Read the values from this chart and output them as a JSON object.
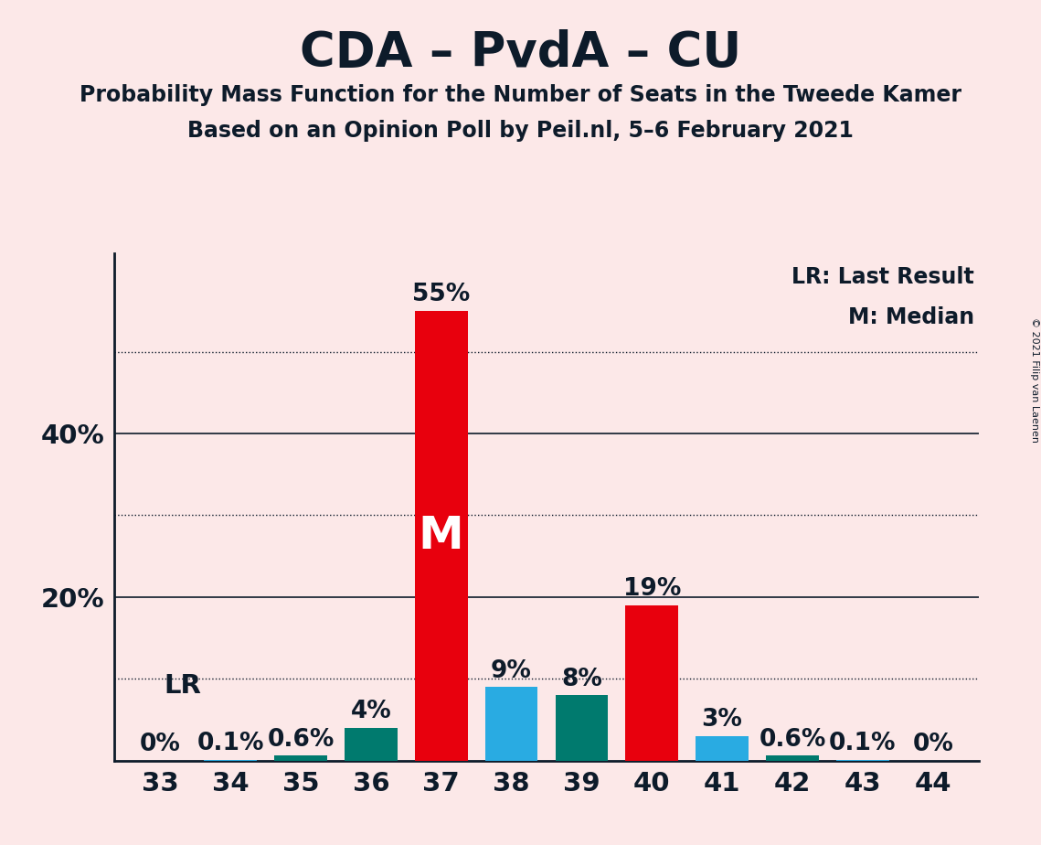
{
  "title": "CDA – PvdA – CU",
  "subtitle1": "Probability Mass Function for the Number of Seats in the Tweede Kamer",
  "subtitle2": "Based on an Opinion Poll by Peil.nl, 5–6 February 2021",
  "copyright": "© 2021 Filip van Laenen",
  "legend_lr": "LR: Last Result",
  "legend_m": "M: Median",
  "seats": [
    33,
    34,
    35,
    36,
    37,
    38,
    39,
    40,
    41,
    42,
    43,
    44
  ],
  "probabilities": [
    0.0,
    0.001,
    0.006,
    0.04,
    0.55,
    0.09,
    0.08,
    0.19,
    0.03,
    0.006,
    0.001,
    0.0
  ],
  "bar_colors": [
    "#e8000d",
    "#29abe2",
    "#007a6e",
    "#007a6e",
    "#e8000d",
    "#29abe2",
    "#007a6e",
    "#e8000d",
    "#29abe2",
    "#007a6e",
    "#29abe2",
    "#e8000d"
  ],
  "median_seat": 37,
  "lr_seat": 34,
  "lr_label": "LR",
  "median_label": "M",
  "background_color": "#fce8e8",
  "axis_color": "#0d1b2a",
  "ylim_max": 0.62,
  "solid_yticks": [
    0.2,
    0.4
  ],
  "dotted_yticks": [
    0.1,
    0.3,
    0.5
  ],
  "title_fontsize": 38,
  "subtitle_fontsize": 17,
  "tick_fontsize": 21,
  "bar_label_fontsize": 19,
  "legend_fontsize": 17,
  "lr_fontsize": 21,
  "median_fontsize": 36,
  "copyright_fontsize": 8
}
